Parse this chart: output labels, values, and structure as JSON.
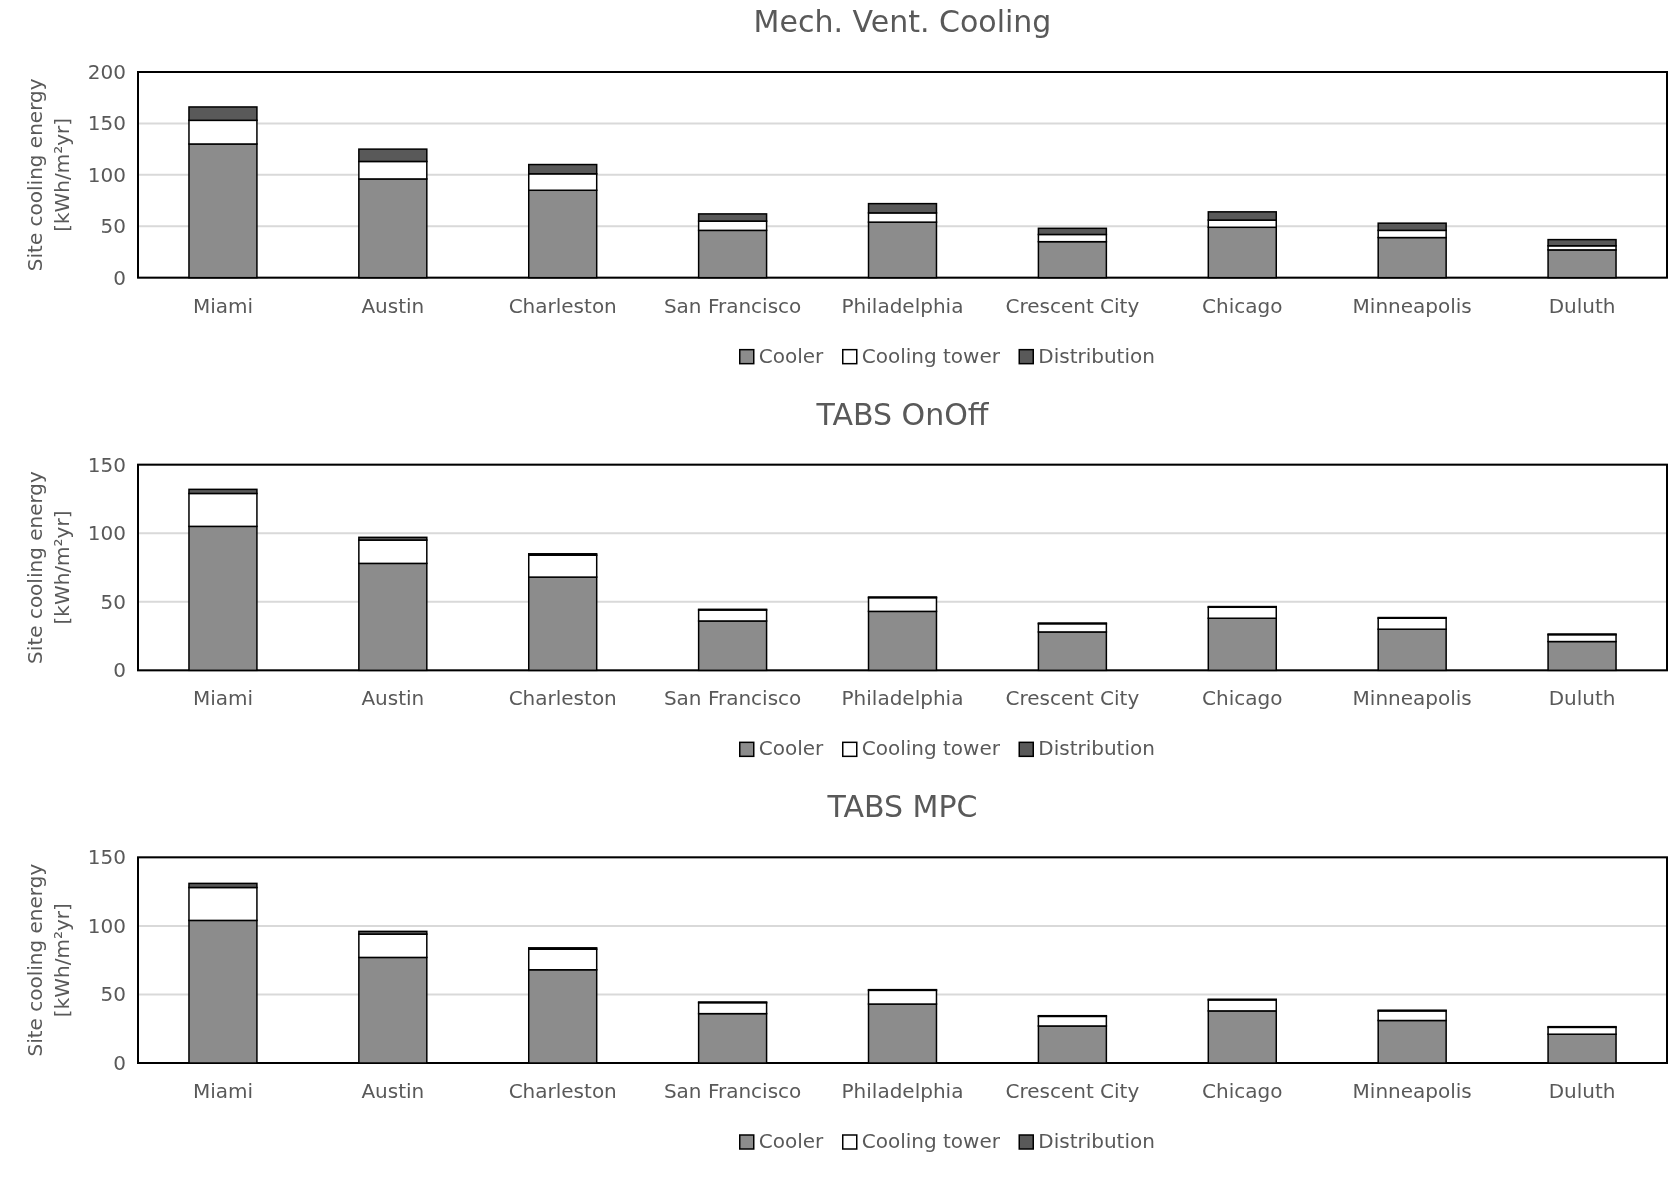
{
  "chart_data": [
    {
      "type": "bar",
      "title": "Mech. Vent. Cooling",
      "ylabel": "Site cooling energy [kWh/m²yr]",
      "categories": [
        "Miami",
        "Austin",
        "Charleston",
        "San Francisco",
        "Philadelphia",
        "Crescent City",
        "Chicago",
        "Minneapolis",
        "Duluth"
      ],
      "stacked": true,
      "ylim": [
        0,
        200
      ],
      "yticks": [
        0,
        50,
        100,
        150,
        200
      ],
      "grid": "y",
      "legend": "bottom",
      "series": [
        {
          "name": "Cooler",
          "color": "#8c8c8c",
          "values": [
            130,
            96,
            85,
            46,
            54,
            35,
            49,
            39,
            27
          ]
        },
        {
          "name": "Cooling tower",
          "color": "#ffffff",
          "values": [
            23,
            17,
            16,
            9,
            9,
            7,
            7,
            7,
            4
          ]
        },
        {
          "name": "Distribution",
          "color": "#595959",
          "values": [
            13,
            12,
            9,
            7,
            9,
            6,
            8,
            7,
            6
          ]
        }
      ]
    },
    {
      "type": "bar",
      "title": "TABS OnOff",
      "ylabel": "Site cooling energy [kWh/m²yr]",
      "categories": [
        "Miami",
        "Austin",
        "Charleston",
        "San Francisco",
        "Philadelphia",
        "Crescent City",
        "Chicago",
        "Minneapolis",
        "Duluth"
      ],
      "stacked": true,
      "ylim": [
        0,
        150
      ],
      "yticks": [
        0,
        50,
        100,
        150
      ],
      "grid": "y",
      "legend": "bottom",
      "series": [
        {
          "name": "Cooler",
          "color": "#8c8c8c",
          "values": [
            105,
            78,
            68,
            36,
            43,
            28,
            38,
            30,
            21
          ]
        },
        {
          "name": "Cooling tower",
          "color": "#ffffff",
          "values": [
            24,
            17,
            16,
            8,
            10,
            6,
            8,
            8,
            5
          ]
        },
        {
          "name": "Distribution",
          "color": "#595959",
          "values": [
            3,
            2,
            1,
            0.5,
            0.5,
            0.5,
            0.5,
            0.5,
            0.5
          ]
        }
      ]
    },
    {
      "type": "bar",
      "title": "TABS MPC",
      "ylabel": "Site cooling energy [kWh/m²yr]",
      "categories": [
        "Miami",
        "Austin",
        "Charleston",
        "San Francisco",
        "Philadelphia",
        "Crescent City",
        "Chicago",
        "Minneapolis",
        "Duluth"
      ],
      "stacked": true,
      "ylim": [
        0,
        150
      ],
      "yticks": [
        0,
        50,
        100,
        150
      ],
      "grid": "y",
      "legend": "bottom",
      "series": [
        {
          "name": "Cooler",
          "color": "#8c8c8c",
          "values": [
            104,
            77,
            68,
            36,
            43,
            27,
            38,
            31,
            21
          ]
        },
        {
          "name": "Cooling tower",
          "color": "#ffffff",
          "values": [
            24,
            17,
            15,
            8,
            10,
            7,
            8,
            7,
            5
          ]
        },
        {
          "name": "Distribution",
          "color": "#595959",
          "values": [
            3,
            2,
            1,
            0.5,
            0.5,
            0.5,
            0.5,
            0.5,
            0.5
          ]
        }
      ]
    }
  ]
}
